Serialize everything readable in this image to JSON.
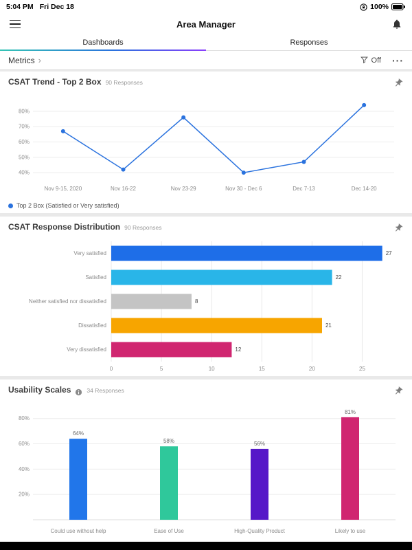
{
  "status_bar": {
    "time": "5:04 PM",
    "date": "Fri Dec 18",
    "battery_percent": "100%"
  },
  "header": {
    "title": "Area Manager"
  },
  "tabs": {
    "dashboards": "Dashboards",
    "responses": "Responses"
  },
  "toolbar": {
    "breadcrumb": "Metrics",
    "filter_state": "Off"
  },
  "glyphs": {
    "chevron_right": "›",
    "more": "···"
  },
  "cards": {
    "trend": {
      "title": "CSAT Trend - Top 2 Box",
      "responses": "90 Responses"
    },
    "distribution": {
      "title": "CSAT Response Distribution",
      "responses": "90 Responses"
    },
    "usability": {
      "title": "Usability Scales",
      "responses": "34 Responses"
    }
  },
  "colors": {
    "accent_blue": "#2A72DE",
    "tab_gradient": [
      "#35C4B5",
      "#2A72DE",
      "#8A3FFC"
    ]
  },
  "chart_data": [
    {
      "id": "trend",
      "type": "line",
      "title": "CSAT Trend - Top 2 Box",
      "x": [
        "Nov 9-15, 2020",
        "Nov 16-22",
        "Nov 23-29",
        "Nov 30 - Dec 6",
        "Dec 7-13",
        "Dec 14-20"
      ],
      "values": [
        67,
        42,
        76,
        40,
        47,
        84
      ],
      "unit": "%",
      "ylim": [
        36,
        88
      ],
      "yticks": [
        40,
        50,
        60,
        70,
        80
      ],
      "color": "#2A72DE",
      "legend": "Top 2 Box (Satisfied or Very satisfied)",
      "grid": true,
      "legend_position": "bottom-left"
    },
    {
      "id": "distribution",
      "type": "bar-horizontal",
      "title": "CSAT Response Distribution",
      "categories": [
        "Very satisfied",
        "Satisfied",
        "Neither satisfied nor dissatisfied",
        "Dissatisfied",
        "Very dissatisfied"
      ],
      "values": [
        27,
        22,
        8,
        21,
        12
      ],
      "colors": [
        "#1E6EE8",
        "#29B5E8",
        "#C4C4C4",
        "#F7A500",
        "#D02670"
      ],
      "xticks": [
        0,
        5,
        10,
        15,
        20,
        25
      ],
      "xlim": [
        0,
        27.5
      ],
      "grid": true
    },
    {
      "id": "usability",
      "type": "bar-vertical",
      "title": "Usability Scales",
      "categories": [
        "Could use without help",
        "Ease of Use",
        "High-Quality Product",
        "Likely to use"
      ],
      "values": [
        64,
        58,
        56,
        81
      ],
      "value_labels": [
        "64%",
        "58%",
        "56%",
        "81%"
      ],
      "colors": [
        "#2176EA",
        "#2FC89B",
        "#5618C8",
        "#D02670"
      ],
      "yticks": [
        20,
        40,
        60,
        80
      ],
      "ylim": [
        0,
        88
      ],
      "unit": "%",
      "grid": true
    }
  ]
}
